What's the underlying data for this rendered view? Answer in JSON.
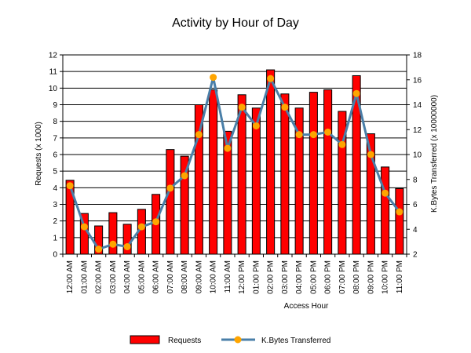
{
  "chart_data": {
    "type": "bar",
    "title": "Activity by Hour of Day",
    "xlabel": "Access Hour",
    "ylabel": "Requests (x 1000)",
    "y2label": "K.Bytes Transferred (x 10000000)",
    "categories": [
      "12:00 AM",
      "01:00 AM",
      "02:00 AM",
      "03:00 AM",
      "04:00 AM",
      "05:00 AM",
      "06:00 AM",
      "07:00 AM",
      "08:00 AM",
      "09:00 AM",
      "10:00 AM",
      "11:00 AM",
      "12:00 PM",
      "01:00 PM",
      "02:00 PM",
      "03:00 PM",
      "04:00 PM",
      "05:00 PM",
      "06:00 PM",
      "07:00 PM",
      "08:00 PM",
      "09:00 PM",
      "10:00 PM",
      "11:00 PM"
    ],
    "ylim": [
      0,
      12
    ],
    "y2lim": [
      2,
      18
    ],
    "yticks": [
      "0",
      "1",
      "2",
      "3",
      "4",
      "5",
      "6",
      "7",
      "8",
      "9",
      "10",
      "11",
      "12"
    ],
    "y2ticks": [
      "2",
      "4",
      "6",
      "8",
      "10",
      "12",
      "14",
      "16",
      "18"
    ],
    "grid": true,
    "legend_position": "bottom",
    "series": [
      {
        "name": "Requests",
        "kind": "bar",
        "axis": "left",
        "color": "#ff0000",
        "values": [
          4.45,
          2.45,
          1.7,
          2.5,
          1.8,
          2.7,
          3.6,
          6.3,
          5.9,
          9.0,
          9.9,
          7.4,
          9.6,
          8.8,
          11.1,
          9.65,
          8.8,
          9.75,
          9.9,
          8.6,
          10.75,
          7.25,
          5.25,
          3.95
        ]
      },
      {
        "name": "K.Bytes Transferred",
        "kind": "line",
        "axis": "right",
        "color": "#4a7fa8",
        "marker_color": "#ffa500",
        "values": [
          7.5,
          4.2,
          2.4,
          2.8,
          2.6,
          4.2,
          4.6,
          7.3,
          8.3,
          11.6,
          16.2,
          10.5,
          13.8,
          12.3,
          16.1,
          13.8,
          11.6,
          11.6,
          11.8,
          10.8,
          14.9,
          10.0,
          6.9,
          5.4
        ]
      }
    ]
  }
}
